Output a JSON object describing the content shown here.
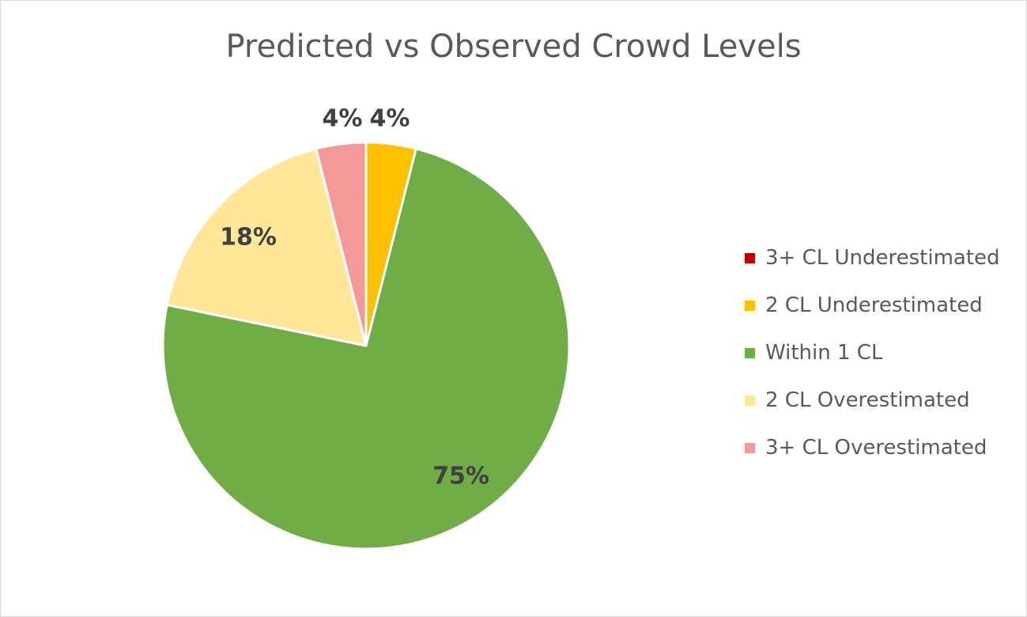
{
  "chart_data": {
    "type": "pie",
    "title": "Predicted vs Observed Crowd Levels",
    "legend_position": "right",
    "slices": [
      {
        "label": "3+ CL Underestimated",
        "value": 0,
        "display": "",
        "color": "#c00000"
      },
      {
        "label": "2 CL Underestimated",
        "value": 4,
        "display": "4%",
        "color": "#ffc000"
      },
      {
        "label": "Within 1 CL",
        "value": 75,
        "display": "75%",
        "color": "#70ad47"
      },
      {
        "label": "2 CL Overestimated",
        "value": 18,
        "display": "18%",
        "color": "#ffe699"
      },
      {
        "label": "3+ CL Overestimated",
        "value": 4,
        "display": "4%",
        "color": "#f4999a"
      }
    ]
  }
}
